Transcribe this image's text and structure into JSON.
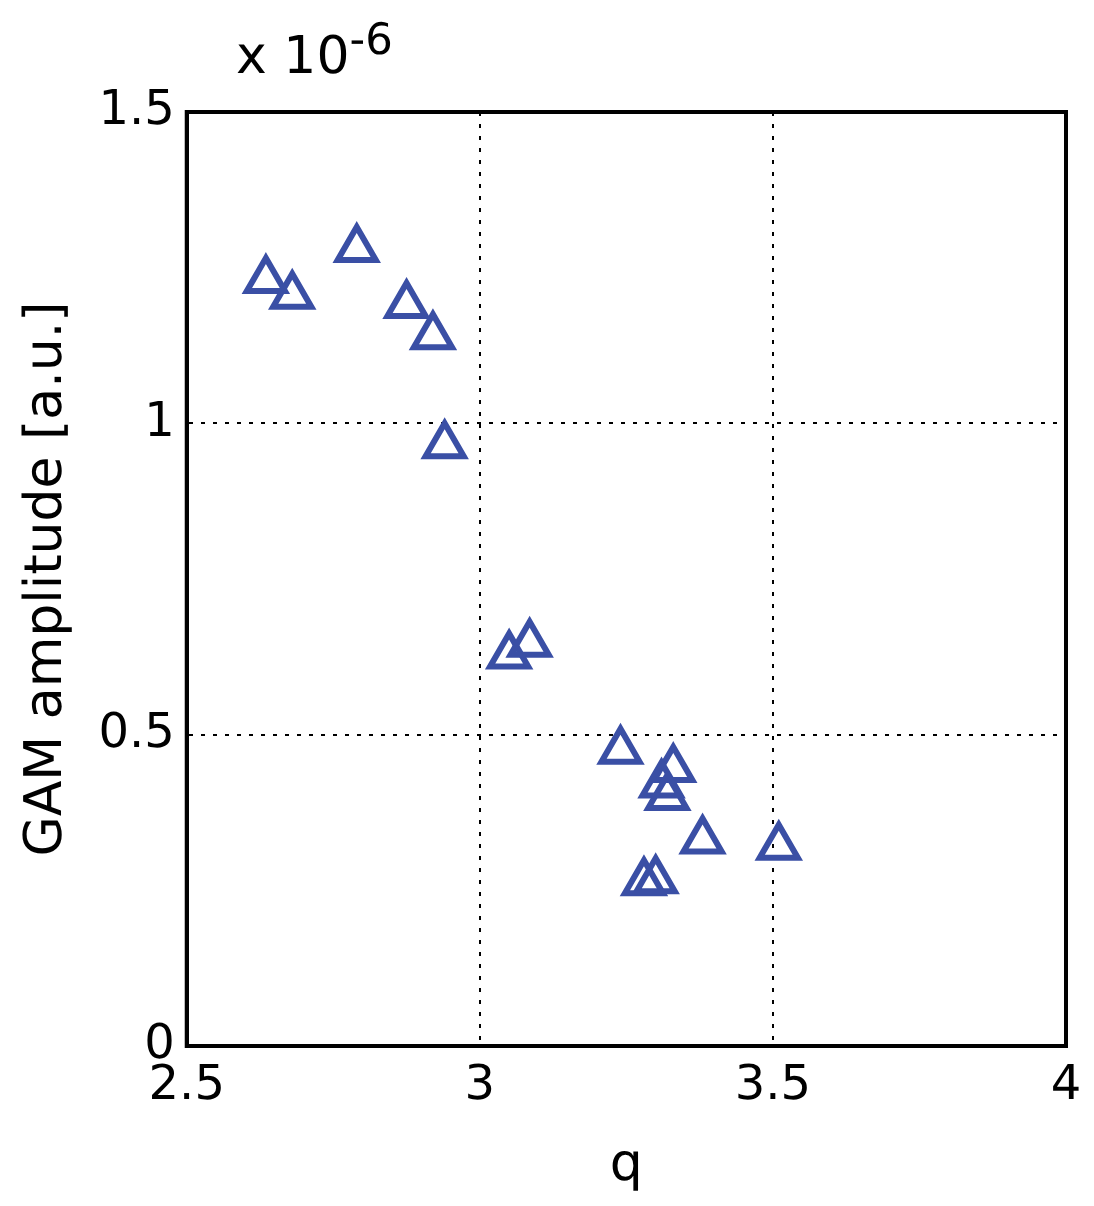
{
  "chart_data": {
    "type": "scatter",
    "xlabel": "q",
    "ylabel": "GAM amplitude [a.u.]",
    "annotations": [
      "x 10$^{-6}$"
    ],
    "x": [
      2.635,
      2.68,
      2.79,
      2.875,
      2.92,
      2.94,
      3.05,
      3.085,
      3.24,
      3.33,
      3.31,
      3.32,
      3.38,
      3.51,
      3.28,
      3.3
    ],
    "series": [
      {
        "color": "#3a4fa5",
        "values": [
          1.23,
          1.205,
          1.28,
          1.19,
          1.14,
          0.965,
          0.627,
          0.646,
          0.474,
          0.445,
          0.42,
          0.4,
          0.33,
          0.32,
          0.263,
          0.266
        ]
      }
    ],
    "xlim": [
      2.5,
      4
    ],
    "xticks": [
      2.5,
      3,
      3.5,
      4
    ],
    "ylim": [
      0,
      1.5
    ],
    "yticks": [
      0,
      0.5,
      1,
      1.5
    ],
    "grid": true,
    "marker": "triangle",
    "legend": false
  }
}
